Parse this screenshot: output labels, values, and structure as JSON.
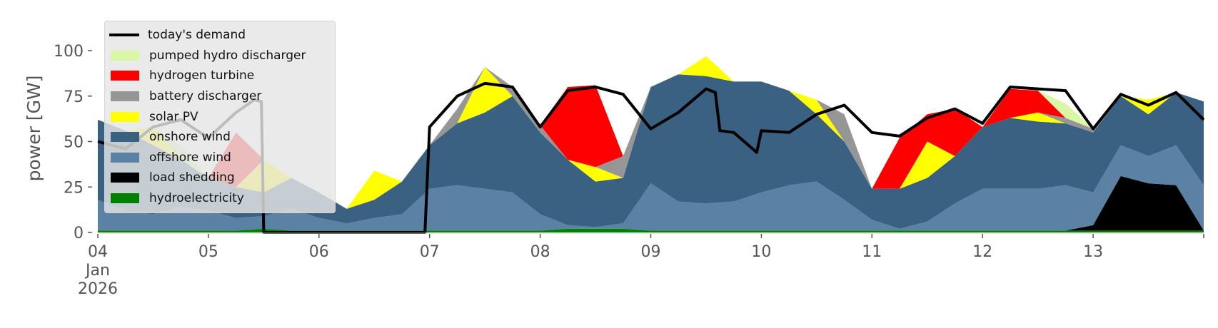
{
  "chart_data": {
    "type": "area",
    "stacked": true,
    "ylabel": "power [GW]",
    "ylim": [
      0,
      120
    ],
    "yticks": [
      0,
      25,
      50,
      75,
      100
    ],
    "xlim": [
      "2026-01-04T00:00",
      "2026-01-14T00:00"
    ],
    "xticks": [
      {
        "date": "2026-01-04",
        "label": [
          "04",
          "Jan",
          "2026"
        ]
      },
      {
        "date": "2026-01-05",
        "label": [
          "05"
        ]
      },
      {
        "date": "2026-01-06",
        "label": [
          "06"
        ]
      },
      {
        "date": "2026-01-07",
        "label": [
          "07"
        ]
      },
      {
        "date": "2026-01-08",
        "label": [
          "08"
        ]
      },
      {
        "date": "2026-01-09",
        "label": [
          "09"
        ]
      },
      {
        "date": "2026-01-10",
        "label": [
          "10"
        ]
      },
      {
        "date": "2026-01-11",
        "label": [
          "11"
        ]
      },
      {
        "date": "2026-01-12",
        "label": [
          "12"
        ]
      },
      {
        "date": "2026-01-13",
        "label": [
          "13"
        ]
      },
      {
        "date": "2026-01-14",
        "label": [
          ""
        ]
      }
    ],
    "grid": false,
    "legend_placement": "upper-left",
    "x": [
      "2026-01-04T00:00",
      "2026-01-04T06:00",
      "2026-01-04T12:00",
      "2026-01-04T18:00",
      "2026-01-05T00:00",
      "2026-01-05T06:00",
      "2026-01-05T12:00",
      "2026-01-05T18:00",
      "2026-01-06T00:00",
      "2026-01-06T06:00",
      "2026-01-06T12:00",
      "2026-01-06T18:00",
      "2026-01-07T00:00",
      "2026-01-07T06:00",
      "2026-01-07T12:00",
      "2026-01-07T18:00",
      "2026-01-08T00:00",
      "2026-01-08T06:00",
      "2026-01-08T12:00",
      "2026-01-08T18:00",
      "2026-01-09T00:00",
      "2026-01-09T06:00",
      "2026-01-09T12:00",
      "2026-01-09T18:00",
      "2026-01-10T00:00",
      "2026-01-10T06:00",
      "2026-01-10T12:00",
      "2026-01-10T18:00",
      "2026-01-11T00:00",
      "2026-01-11T06:00",
      "2026-01-11T12:00",
      "2026-01-11T18:00",
      "2026-01-12T00:00",
      "2026-01-12T06:00",
      "2026-01-12T12:00",
      "2026-01-12T18:00",
      "2026-01-13T00:00",
      "2026-01-13T06:00",
      "2026-01-13T12:00",
      "2026-01-13T18:00",
      "2026-01-14T00:00"
    ],
    "series": [
      {
        "name": "hydroelectricity",
        "color": "#008000",
        "values": [
          1,
          1,
          1,
          1,
          1,
          1,
          2,
          1,
          1,
          1,
          1,
          1,
          1,
          1,
          1,
          1,
          1,
          2,
          2,
          2,
          1,
          1,
          1,
          1,
          1,
          1,
          1,
          1,
          1,
          1,
          1,
          1,
          1,
          1,
          1,
          1,
          1,
          1,
          1,
          1,
          1
        ]
      },
      {
        "name": "load shedding",
        "color": "#000000",
        "values": [
          0,
          0,
          0,
          0,
          0,
          0,
          0,
          0,
          0,
          0,
          0,
          0,
          0,
          0,
          0,
          0,
          0,
          0,
          0,
          0,
          0,
          0,
          0,
          0,
          0,
          0,
          0,
          0,
          0,
          0,
          0,
          0,
          0,
          0,
          0,
          0,
          3,
          30,
          26,
          25,
          0
        ]
      },
      {
        "name": "offshore wind",
        "color": "#5b81a4",
        "values": [
          17,
          11,
          9,
          13,
          11,
          7,
          7,
          12,
          7,
          4,
          7,
          9,
          23,
          25,
          23,
          21,
          9,
          2,
          1,
          3,
          26,
          16,
          15,
          16,
          21,
          25,
          27,
          17,
          6,
          1,
          5,
          15,
          23,
          23,
          23,
          25,
          18,
          17,
          15,
          22,
          25
        ]
      },
      {
        "name": "onshore wind",
        "color": "#3b6182",
        "values": [
          44,
          44,
          38,
          26,
          18,
          17,
          13,
          17,
          14,
          8,
          10,
          18,
          24,
          34,
          42,
          53,
          45,
          36,
          25,
          25,
          53,
          70,
          70,
          66,
          61,
          52,
          37,
          32,
          17,
          22,
          24,
          26,
          34,
          39,
          37,
          34,
          33,
          27,
          23,
          29,
          46
        ]
      },
      {
        "name": "solar PV",
        "color": "#ffff00",
        "values": [
          0,
          0,
          10,
          0,
          0,
          0,
          18,
          0,
          0,
          0,
          16,
          0,
          0,
          0,
          25,
          0,
          0,
          0,
          8,
          0,
          0,
          0,
          11,
          0,
          0,
          0,
          8,
          0,
          0,
          0,
          20,
          0,
          0,
          0,
          5,
          0,
          0,
          0,
          8,
          0,
          0
        ]
      },
      {
        "name": "battery discharger",
        "color": "#969696",
        "values": [
          0,
          0,
          0,
          0,
          0,
          0,
          0,
          0,
          0,
          0,
          0,
          0,
          0,
          8,
          0,
          5,
          4,
          0,
          0,
          12,
          0,
          0,
          0,
          0,
          0,
          0,
          0,
          15,
          0,
          0,
          0,
          0,
          0,
          0,
          0,
          3,
          2,
          0,
          0,
          0,
          0
        ]
      },
      {
        "name": "hydrogen turbine",
        "color": "#ff0000",
        "values": [
          0,
          0,
          0,
          0,
          0,
          30,
          0,
          0,
          0,
          0,
          0,
          0,
          0,
          0,
          0,
          0,
          0,
          40,
          45,
          0,
          0,
          0,
          0,
          0,
          0,
          0,
          0,
          0,
          0,
          28,
          15,
          26,
          0,
          16,
          12,
          0,
          0,
          0,
          0,
          0,
          0
        ]
      },
      {
        "name": "pumped hydro discharger",
        "color": "#d9f7a4",
        "values": [
          0,
          0,
          0,
          8,
          0,
          0,
          0,
          0,
          0,
          0,
          0,
          0,
          0,
          0,
          0,
          0,
          0,
          0,
          0,
          0,
          0,
          0,
          0,
          0,
          0,
          0,
          0,
          0,
          0,
          0,
          0,
          0,
          0,
          0,
          0,
          8,
          0,
          0,
          0,
          0,
          0
        ]
      }
    ],
    "demand": {
      "name": "today's demand",
      "color": "#000000",
      "x": [
        "2026-01-04T00:00",
        "2026-01-04T06:00",
        "2026-01-04T12:00",
        "2026-01-04T18:00",
        "2026-01-05T00:00",
        "2026-01-05T06:00",
        "2026-01-05T10:00",
        "2026-01-05T11:30",
        "2026-01-05T12:00",
        "2026-01-06T23:00",
        "2026-01-07T00:00",
        "2026-01-07T06:00",
        "2026-01-07T12:00",
        "2026-01-07T18:00",
        "2026-01-08T00:00",
        "2026-01-08T06:00",
        "2026-01-08T12:00",
        "2026-01-08T18:00",
        "2026-01-09T00:00",
        "2026-01-09T06:00",
        "2026-01-09T12:00",
        "2026-01-09T14:00",
        "2026-01-09T15:00",
        "2026-01-09T18:00",
        "2026-01-09T23:00",
        "2026-01-10T00:00",
        "2026-01-10T06:00",
        "2026-01-10T12:00",
        "2026-01-10T18:00",
        "2026-01-11T00:00",
        "2026-01-11T06:00",
        "2026-01-11T12:00",
        "2026-01-11T18:00",
        "2026-01-12T00:00",
        "2026-01-12T06:00",
        "2026-01-12T12:00",
        "2026-01-12T18:00",
        "2026-01-13T00:00",
        "2026-01-13T06:00",
        "2026-01-13T12:00",
        "2026-01-13T18:00",
        "2026-01-14T00:00"
      ],
      "values": [
        50,
        46,
        58,
        62,
        52,
        66,
        73,
        72,
        0,
        0,
        58,
        75,
        82,
        80,
        58,
        78,
        80,
        76,
        57,
        66,
        79,
        77,
        56,
        55,
        44,
        56,
        55,
        65,
        70,
        55,
        53,
        63,
        68,
        60,
        80,
        79,
        78,
        57,
        76,
        70,
        77,
        62
      ]
    }
  },
  "legend": [
    {
      "label": "today's demand",
      "kind": "line",
      "color": "#000000"
    },
    {
      "label": "pumped hydro discharger",
      "kind": "patch",
      "color": "#d9f7a4"
    },
    {
      "label": "hydrogen turbine",
      "kind": "patch",
      "color": "#ff0000"
    },
    {
      "label": "battery discharger",
      "kind": "patch",
      "color": "#969696"
    },
    {
      "label": "solar PV",
      "kind": "patch",
      "color": "#ffff00"
    },
    {
      "label": "onshore wind",
      "kind": "patch",
      "color": "#3b6182"
    },
    {
      "label": "offshore wind",
      "kind": "patch",
      "color": "#5b81a4"
    },
    {
      "label": "load shedding",
      "kind": "patch",
      "color": "#000000"
    },
    {
      "label": "hydroelectricity",
      "kind": "patch",
      "color": "#008000"
    }
  ]
}
